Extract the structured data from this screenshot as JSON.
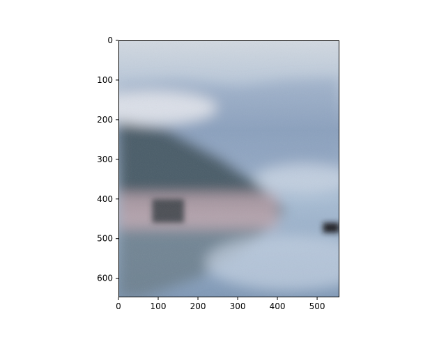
{
  "chart_data": {
    "type": "image",
    "title": "",
    "xlabel": "",
    "ylabel": "",
    "xlim": [
      0,
      556
    ],
    "ylim": [
      648,
      0
    ],
    "x_ticks": [
      0,
      100,
      200,
      300,
      400,
      500
    ],
    "y_ticks": [
      0,
      100,
      200,
      300,
      400,
      500,
      600
    ],
    "grid": false,
    "legend": "none",
    "image": {
      "subject": "blurred lake landscape with mountain reflection",
      "colors": {
        "sky_top": "#d2d9e1",
        "haze": "#b7c6d8",
        "distant_mountains": "#8aa1bd",
        "water_light": "#a7bcd3",
        "water_mid": "#7f98b6",
        "hill_dark": "#4a5b68",
        "hill_mid": "#6b7e8b",
        "shore_pink": "#c9aeb7",
        "dark_object": "#1c1f22"
      }
    }
  }
}
